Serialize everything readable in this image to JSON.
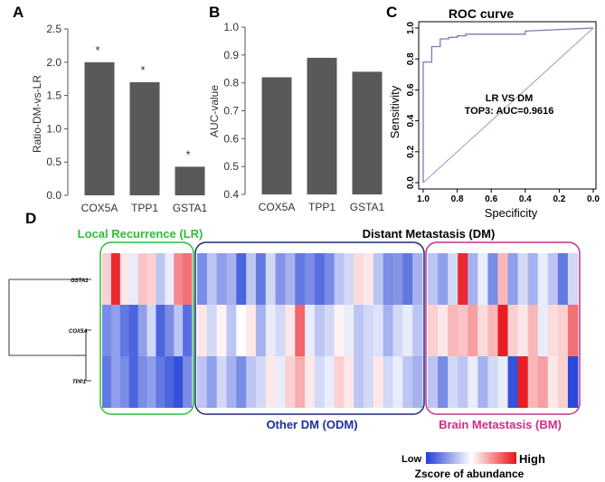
{
  "colors": {
    "bar": "#595959",
    "roc": "#7b7bb5",
    "lr_box": "#2fbd3a",
    "odm_box": "#1b2a80",
    "bm_box": "#c0358f",
    "lr_text": "#2fbd3a",
    "odm_text": "#1d2f9e",
    "bm_text": "#d62b8a",
    "low": "#1f3fd6",
    "mid": "#ffffff",
    "high": "#e8121a"
  },
  "panels": {
    "A": "A",
    "B": "B",
    "C": "C",
    "D": "D"
  },
  "chart_data": [
    {
      "type": "bar",
      "panel": "A",
      "categories": [
        "COX5A",
        "TPP1",
        "GSTA1"
      ],
      "values": [
        2.0,
        1.7,
        0.43
      ],
      "annotations": [
        "*",
        "*",
        "*"
      ],
      "ylabel": "Ratio-DM-vs-LR",
      "ylim": [
        0,
        2.5
      ],
      "yticks": [
        0.0,
        0.5,
        1.0,
        1.5,
        2.0,
        2.5
      ],
      "ytick_labels": [
        "0.0",
        "0.5",
        "1.0",
        "1.5",
        "2.0",
        "2.5"
      ]
    },
    {
      "type": "bar",
      "panel": "B",
      "categories": [
        "COX5A",
        "TPP1",
        "GSTA1"
      ],
      "values": [
        0.82,
        0.89,
        0.84
      ],
      "ylabel": "AUC-value",
      "ylim": [
        0.4,
        1.0
      ],
      "yticks": [
        0.4,
        0.5,
        0.6,
        0.7,
        0.8,
        0.9,
        1.0
      ],
      "ytick_labels": [
        "0.4",
        "0.5",
        "0.6",
        "0.7",
        "0.8",
        "0.9",
        "1.0"
      ]
    },
    {
      "type": "line",
      "panel": "C",
      "title": "ROC curve",
      "xlabel": "Specificity",
      "ylabel": "Sensitivity",
      "xlim": [
        1.0,
        0.0
      ],
      "ylim": [
        0.0,
        1.0
      ],
      "xticks": [
        1.0,
        0.8,
        0.6,
        0.4,
        0.2,
        0.0
      ],
      "xtick_labels": [
        "1.0",
        "0.8",
        "0.6",
        "0.4",
        "0.2",
        "0.0"
      ],
      "yticks": [
        0.0,
        0.2,
        0.4,
        0.6,
        0.8,
        1.0
      ],
      "ytick_labels": [
        "0.0",
        "0.2",
        "0.4",
        "0.6",
        "0.8",
        "1.0"
      ],
      "annotation_line1": "LR VS DM",
      "annotation_line2": "TOP3: AUC=0.9616",
      "specificity": [
        1.0,
        1.0,
        0.95,
        0.95,
        0.9,
        0.9,
        0.85,
        0.85,
        0.8,
        0.8,
        0.75,
        0.75,
        0.4,
        0.4,
        0.0
      ],
      "sensitivity": [
        0.0,
        0.78,
        0.78,
        0.88,
        0.88,
        0.93,
        0.93,
        0.94,
        0.94,
        0.95,
        0.95,
        0.96,
        0.96,
        0.98,
        1.0
      ]
    },
    {
      "type": "heatmap",
      "panel": "D",
      "rows": [
        "GSTA1",
        "COX5A",
        "TPP1"
      ],
      "groups": [
        {
          "key": "LR",
          "label": "Local Recurrence (LR)",
          "n": 10
        },
        {
          "key": "ODM",
          "label": "Other DM (ODM)",
          "n": 23
        },
        {
          "key": "BM",
          "label": "Brain Metastasis (BM)",
          "n": 15
        }
      ],
      "dm_label": "Distant Metastasis (DM)",
      "values": [
        [
          0.2,
          0.9,
          0.1,
          -0.1,
          0.25,
          0.2,
          -0.3,
          -0.1,
          0.5,
          0.6,
          -0.6,
          -0.3,
          -0.5,
          -0.4,
          -0.8,
          -0.3,
          -0.7,
          -0.2,
          -0.55,
          -0.4,
          -0.7,
          -0.6,
          -0.75,
          -0.6,
          -0.3,
          -0.2,
          0.15,
          0.1,
          -0.3,
          -0.6,
          -0.55,
          -0.7,
          -0.4,
          -0.3,
          -0.5,
          -0.2,
          0.9,
          -0.4,
          -0.1,
          -0.6,
          0.3,
          -0.5,
          -0.2,
          -0.4,
          -0.1,
          -0.3,
          -0.7,
          -0.2
        ],
        [
          -0.6,
          -0.5,
          -0.7,
          -0.8,
          -0.5,
          -0.2,
          -0.8,
          -0.6,
          -0.3,
          -0.75,
          0.1,
          -0.2,
          0.05,
          -0.3,
          0.0,
          0.1,
          -0.4,
          -0.1,
          -0.2,
          0.1,
          0.65,
          -0.1,
          -0.3,
          -0.2,
          0.05,
          -0.1,
          -0.3,
          -0.2,
          -0.15,
          -0.4,
          -0.2,
          -0.1,
          -0.3,
          0.2,
          0.1,
          0.3,
          0.25,
          0.4,
          0.15,
          0.3,
          0.95,
          0.2,
          0.1,
          0.3,
          -0.1,
          0.15,
          0.2,
          0.6
        ],
        [
          -0.7,
          -0.5,
          -0.6,
          -0.8,
          -0.6,
          -0.5,
          -0.7,
          -0.8,
          -0.9,
          -0.6,
          -0.3,
          -0.5,
          -0.2,
          -0.4,
          -0.6,
          -0.3,
          -0.2,
          0.1,
          -0.1,
          0.2,
          0.35,
          0.1,
          -0.2,
          -0.1,
          0.2,
          0.1,
          -0.3,
          -0.2,
          0.1,
          -0.2,
          -0.1,
          -0.3,
          -0.4,
          -0.3,
          -0.6,
          -0.2,
          -0.3,
          -0.1,
          -0.4,
          -0.2,
          -0.1,
          -0.9,
          0.95,
          0.3,
          0.4,
          0.1,
          0.2,
          -0.95
        ]
      ],
      "legend_low": "Low",
      "legend_high": "High",
      "legend_title": "Zscore of abundance"
    }
  ]
}
